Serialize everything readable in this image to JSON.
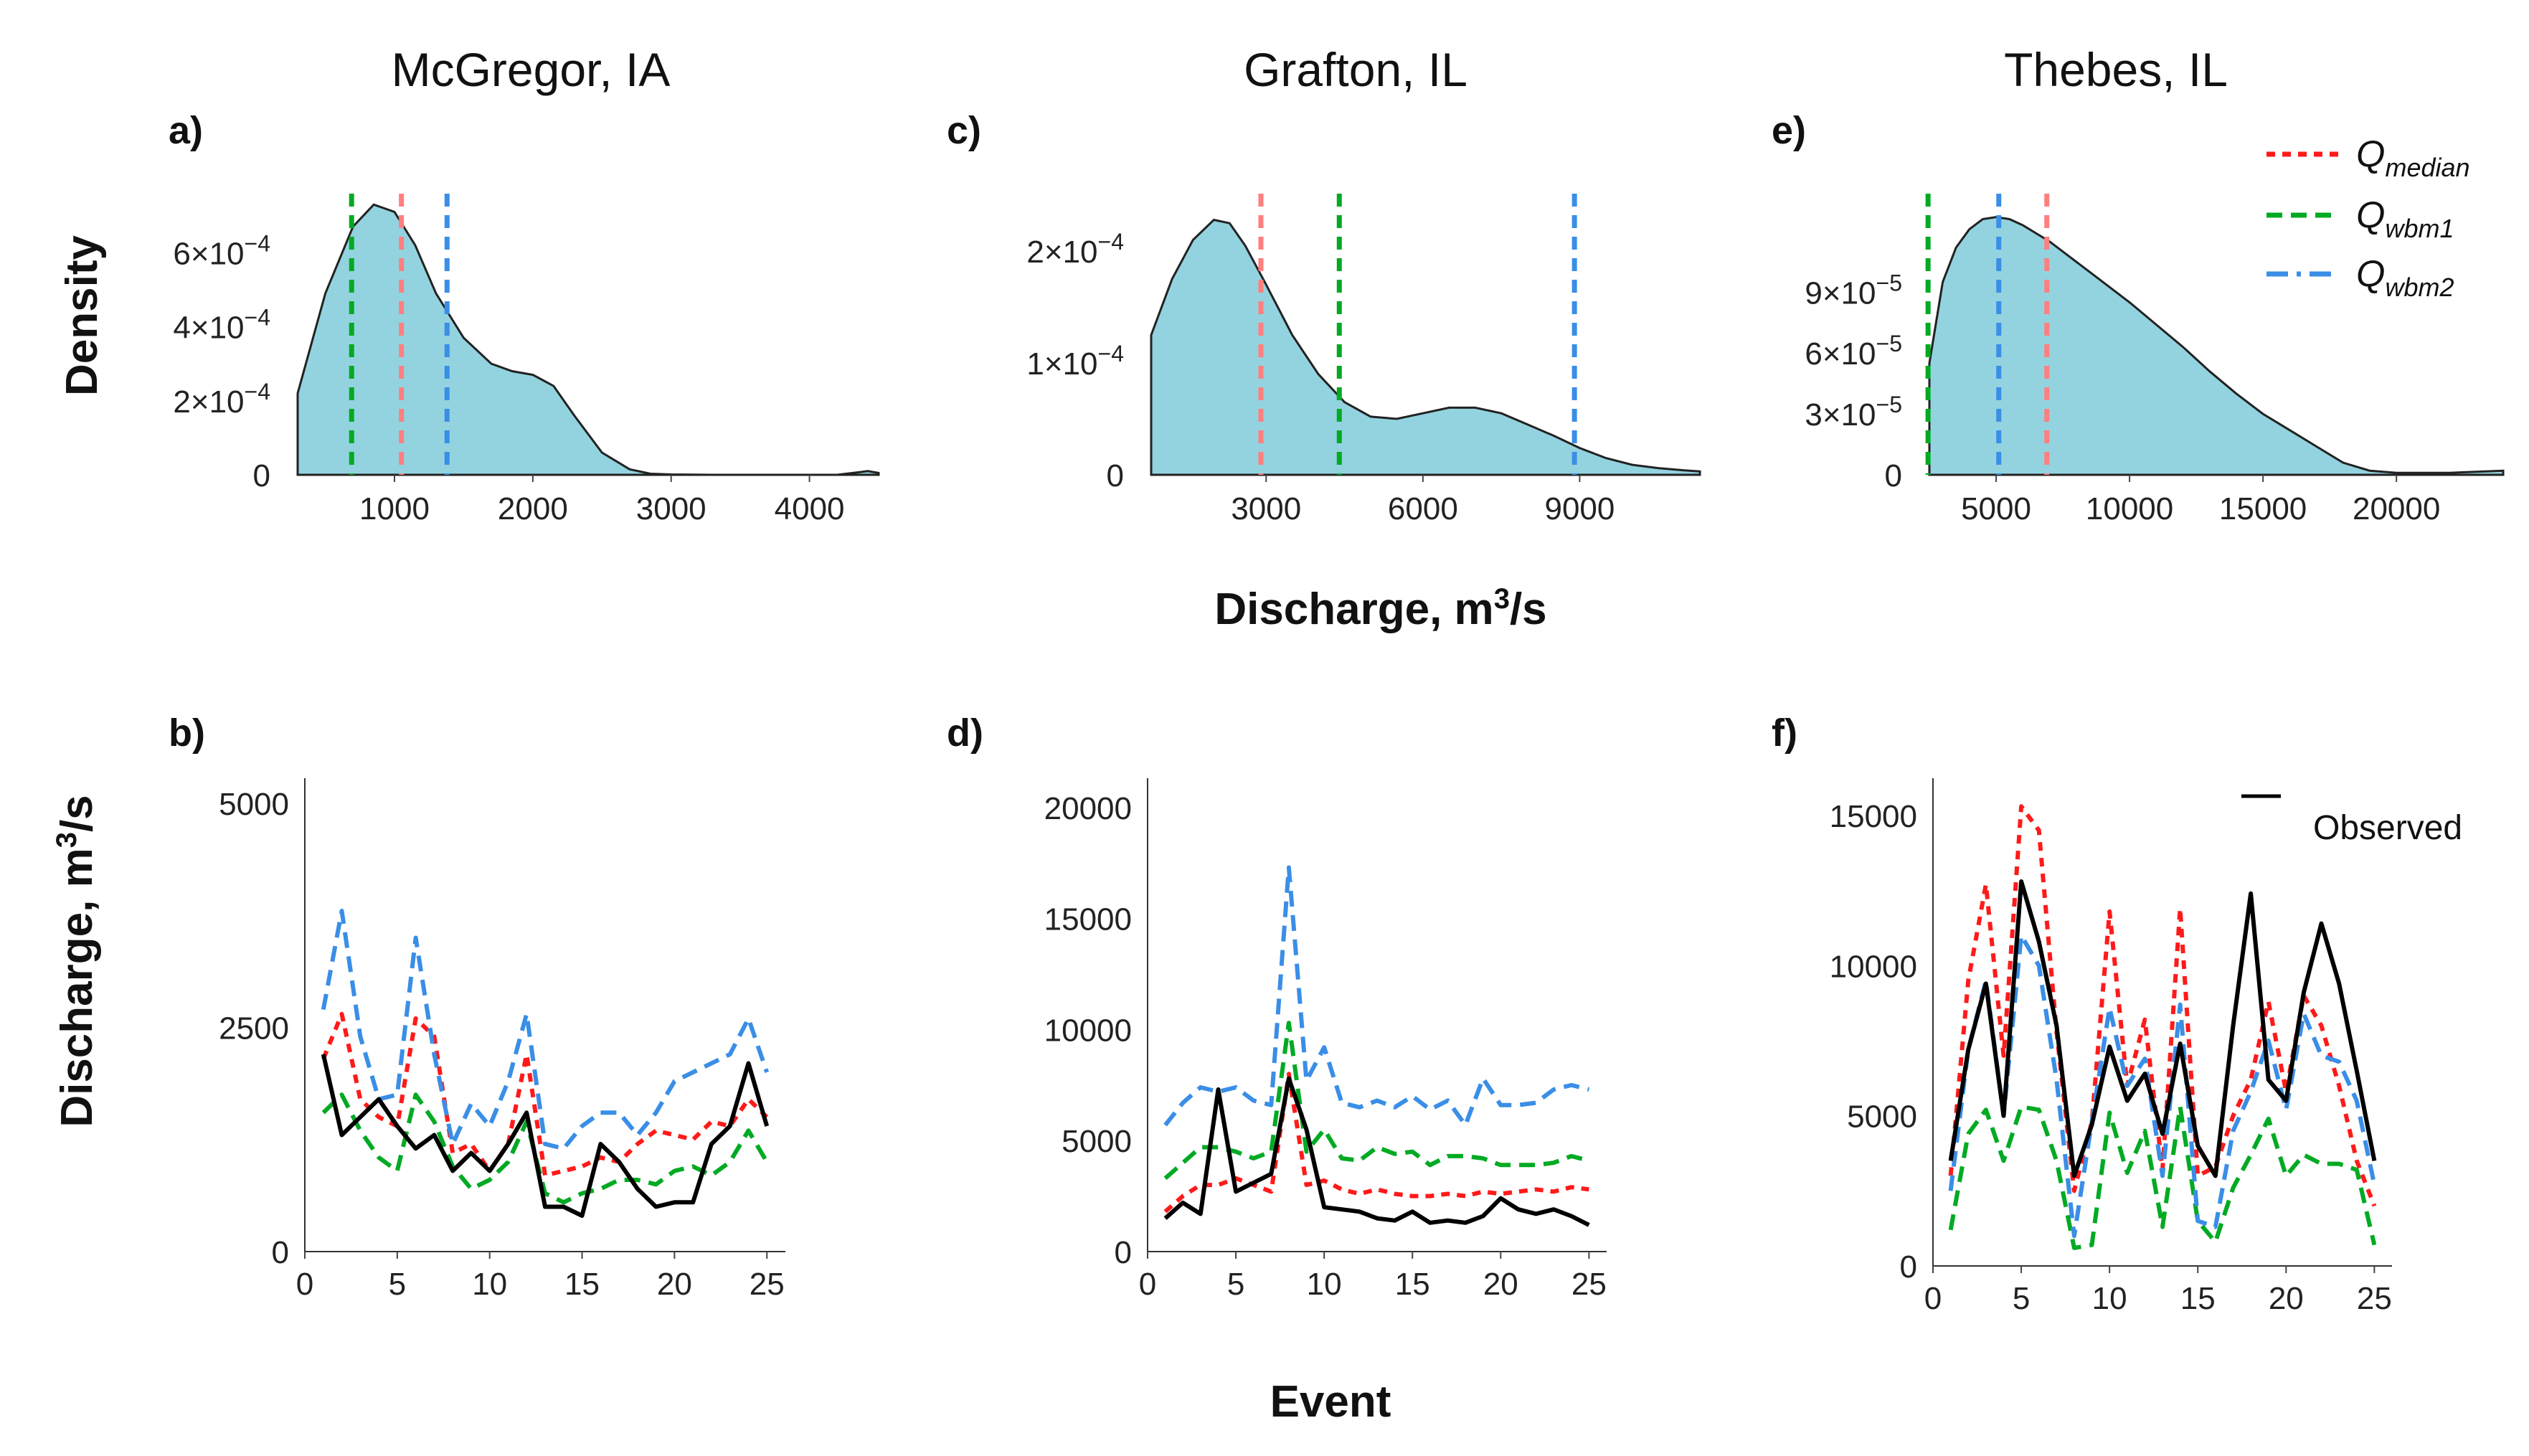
{
  "colors": {
    "median": "#ff1a1a",
    "median_light": "#ff7f7f",
    "wbm1": "#00aa22",
    "wbm2": "#3a8ee6",
    "density_fill": "#93d3df",
    "observed": "#000000"
  },
  "labels": {
    "density_ylabel": "Density",
    "discharge_ylabel": "Discharge, m",
    "discharge_ylabel_sup": "3",
    "discharge_ylabel_tail": "/s",
    "mid_xlabel": "Discharge, m",
    "mid_xlabel_sup": "3",
    "mid_xlabel_tail": "/s",
    "event_xlabel": "Event"
  },
  "legend_top": [
    {
      "label": "Q",
      "sub": "median"
    },
    {
      "label": "Q",
      "sub": "wbm1"
    },
    {
      "label": "Q",
      "sub": "wbm2"
    }
  ],
  "legend_bottom": {
    "observed": "Observed"
  },
  "panels": [
    {
      "site": "McGregor, IA",
      "density_label": "a)",
      "series_label": "b)"
    },
    {
      "site": "Grafton, IL",
      "density_label": "c)",
      "series_label": "d)"
    },
    {
      "site": "Thebes, IL",
      "density_label": "e)",
      "series_label": "f)"
    }
  ],
  "chart_data": [
    {
      "type": "area",
      "panel": "a)",
      "title": "McGregor, IA",
      "xlabel": "Discharge, m3/s",
      "ylabel": "Density",
      "xlim": [
        300,
        4500
      ],
      "ylim": [
        0,
        0.00074
      ],
      "x": [
        300,
        500,
        700,
        850,
        1000,
        1150,
        1300,
        1500,
        1700,
        1850,
        2000,
        2150,
        2300,
        2500,
        2700,
        2850,
        3000,
        3300,
        3600,
        3900,
        4200,
        4380,
        4420,
        4500
      ],
      "y": [
        0.00022,
        0.00049,
        0.00067,
        0.00073,
        0.00071,
        0.00062,
        0.00049,
        0.00037,
        0.0003,
        0.00028,
        0.00027,
        0.00024,
        0.00016,
        6e-05,
        1.5e-05,
        3e-06,
        1e-06,
        0,
        0,
        0,
        0,
        8e-06,
        1e-05,
        5e-06
      ],
      "xticks": [
        1000,
        2000,
        3000,
        4000
      ],
      "xticklabels": [
        "1000",
        "2000",
        "3000",
        "4000"
      ],
      "yticks": [
        0,
        0.0002,
        0.0004,
        0.0006
      ],
      "yticklabels": [
        {
          "m": "0",
          "e": ""
        },
        {
          "m": "2×10",
          "e": "−4"
        },
        {
          "m": "4×10",
          "e": "−4"
        },
        {
          "m": "6×10",
          "e": "−4"
        }
      ],
      "vlines": {
        "median": 1050,
        "wbm1": 690,
        "wbm2": 1380
      }
    },
    {
      "type": "area",
      "panel": "c)",
      "title": "Grafton, IL",
      "xlabel": "Discharge, m3/s",
      "ylabel": "Density",
      "xlim": [
        800,
        11300
      ],
      "ylim": [
        0,
        0.000245
      ],
      "x": [
        800,
        1200,
        1600,
        2000,
        2300,
        2600,
        3000,
        3500,
        4000,
        4500,
        5000,
        5500,
        6000,
        6500,
        7000,
        7500,
        8000,
        8500,
        9000,
        9500,
        10000,
        10500,
        11000,
        11300
      ],
      "y": [
        0.000125,
        0.000175,
        0.00021,
        0.000228,
        0.000225,
        0.000205,
        0.00017,
        0.000125,
        9e-05,
        6.5e-05,
        5.2e-05,
        5e-05,
        5.5e-05,
        6e-05,
        6e-05,
        5.5e-05,
        4.5e-05,
        3.5e-05,
        2.4e-05,
        1.5e-05,
        9e-06,
        6e-06,
        4e-06,
        3e-06
      ],
      "xticks": [
        3000,
        6000,
        9000
      ],
      "xticklabels": [
        "3000",
        "6000",
        "9000"
      ],
      "yticks": [
        0,
        0.0001,
        0.0002
      ],
      "yticklabels": [
        {
          "m": "0",
          "e": ""
        },
        {
          "m": "1×10",
          "e": "−4"
        },
        {
          "m": "2×10",
          "e": "−4"
        }
      ],
      "vlines": {
        "median": 2900,
        "wbm1": 4400,
        "wbm2": 8900
      }
    },
    {
      "type": "area",
      "panel": "e)",
      "title": "Thebes, IL",
      "xlabel": "Discharge, m3/s",
      "ylabel": "Density",
      "xlim": [
        2500,
        24000
      ],
      "ylim": [
        0,
        0.000135
      ],
      "x": [
        2500,
        3000,
        3500,
        4000,
        4500,
        5000,
        5500,
        6000,
        7000,
        8000,
        9000,
        10000,
        11000,
        12000,
        13000,
        14000,
        15000,
        16000,
        17000,
        18000,
        19000,
        20000,
        22000,
        24000
      ],
      "y": [
        5.5e-05,
        9.5e-05,
        0.000112,
        0.000121,
        0.000126,
        0.000127,
        0.000126,
        0.000123,
        0.000115,
        0.000105,
        9.5e-05,
        8.5e-05,
        7.4e-05,
        6.3e-05,
        5.1e-05,
        4e-05,
        3e-05,
        2.2e-05,
        1.4e-05,
        6e-06,
        2e-06,
        1e-06,
        1e-06,
        2e-06
      ],
      "xticks": [
        5000,
        10000,
        15000,
        20000
      ],
      "xticklabels": [
        "5000",
        "10000",
        "15000",
        "20000"
      ],
      "yticks": [
        0,
        3e-05,
        6e-05,
        9e-05
      ],
      "yticklabels": [
        {
          "m": "0",
          "e": ""
        },
        {
          "m": "3×10",
          "e": "−5"
        },
        {
          "m": "6×10",
          "e": "−5"
        },
        {
          "m": "9×10",
          "e": "−5"
        }
      ],
      "vlines": {
        "median": 6900,
        "wbm1": 2450,
        "wbm2": 5100
      }
    },
    {
      "type": "line",
      "panel": "b)",
      "title": "McGregor, IA",
      "xlabel": "Event",
      "ylabel": "Discharge, m3/s",
      "xlim": [
        0,
        26
      ],
      "ylim": [
        0,
        5200
      ],
      "x": [
        1,
        2,
        3,
        4,
        5,
        6,
        7,
        8,
        9,
        10,
        11,
        12,
        13,
        14,
        15,
        16,
        17,
        18,
        19,
        20,
        21,
        22,
        23,
        24,
        25
      ],
      "xticks": [
        0,
        5,
        10,
        15,
        20,
        25
      ],
      "yticks": [
        0,
        2500,
        5000
      ],
      "yticklabels": [
        "0",
        "2500",
        "5000"
      ],
      "series": [
        {
          "name": "Qmedian",
          "style": "median",
          "values": [
            2150,
            2650,
            1700,
            1500,
            1400,
            2600,
            2400,
            1100,
            1200,
            900,
            1200,
            2200,
            850,
            900,
            950,
            1050,
            1000,
            1200,
            1350,
            1300,
            1250,
            1450,
            1400,
            1700,
            1500
          ]
        },
        {
          "name": "Qwbm1",
          "style": "wbm1",
          "values": [
            1550,
            1750,
            1350,
            1050,
            900,
            1750,
            1450,
            950,
            700,
            800,
            1000,
            1450,
            650,
            550,
            650,
            700,
            800,
            800,
            750,
            900,
            950,
            850,
            1000,
            1350,
            1000
          ]
        },
        {
          "name": "Qwbm2",
          "style": "wbm2",
          "values": [
            2700,
            3800,
            2400,
            1700,
            1750,
            3500,
            2200,
            1200,
            1650,
            1400,
            1900,
            2650,
            1200,
            1150,
            1400,
            1550,
            1550,
            1300,
            1550,
            1900,
            2000,
            2100,
            2200,
            2600,
            2000
          ]
        },
        {
          "name": "Observed",
          "style": "observed",
          "values": [
            2200,
            1300,
            1500,
            1700,
            1400,
            1150,
            1300,
            900,
            1100,
            900,
            1200,
            1550,
            500,
            500,
            400,
            1200,
            1000,
            700,
            500,
            550,
            550,
            1200,
            1400,
            2100,
            1400
          ]
        }
      ]
    },
    {
      "type": "line",
      "panel": "d)",
      "title": "Grafton, IL",
      "xlabel": "Event",
      "ylabel": "Discharge, m3/s",
      "xlim": [
        0,
        26
      ],
      "ylim": [
        0,
        21000
      ],
      "x": [
        1,
        2,
        3,
        4,
        5,
        6,
        7,
        8,
        9,
        10,
        11,
        12,
        13,
        14,
        15,
        16,
        17,
        18,
        19,
        20,
        21,
        22,
        23,
        24,
        25
      ],
      "xticks": [
        0,
        5,
        10,
        15,
        20,
        25
      ],
      "yticks": [
        0,
        5000,
        10000,
        15000,
        20000
      ],
      "yticklabels": [
        "0",
        "5000",
        "10000",
        "15000",
        "20000"
      ],
      "series": [
        {
          "name": "Qmedian",
          "style": "median",
          "values": [
            1800,
            2500,
            3000,
            3000,
            3300,
            3000,
            2700,
            8000,
            3000,
            3200,
            2800,
            2600,
            2800,
            2600,
            2500,
            2500,
            2600,
            2500,
            2700,
            2600,
            2700,
            2800,
            2700,
            2900,
            2800
          ]
        },
        {
          "name": "Qwbm1",
          "style": "wbm1",
          "values": [
            3300,
            4000,
            4700,
            4700,
            4500,
            4200,
            4500,
            10300,
            4500,
            5500,
            4200,
            4100,
            4700,
            4400,
            4500,
            3900,
            4300,
            4300,
            4200,
            3900,
            3900,
            3900,
            4000,
            4300,
            4100
          ]
        },
        {
          "name": "Qwbm2",
          "style": "wbm2",
          "values": [
            5700,
            6700,
            7400,
            7200,
            7400,
            6800,
            6600,
            17300,
            7700,
            9200,
            6700,
            6500,
            6800,
            6500,
            7000,
            6400,
            6800,
            5700,
            7800,
            6600,
            6600,
            6700,
            7300,
            7500,
            7300
          ]
        },
        {
          "name": "Observed",
          "style": "observed",
          "values": [
            1500,
            2200,
            1700,
            7300,
            2700,
            3100,
            3500,
            7800,
            5500,
            2000,
            1900,
            1800,
            1500,
            1400,
            1800,
            1300,
            1400,
            1300,
            1600,
            2400,
            1900,
            1700,
            1900,
            1600,
            1200
          ]
        }
      ]
    },
    {
      "type": "line",
      "panel": "f)",
      "title": "Thebes, IL",
      "xlabel": "Event",
      "ylabel": "Discharge, m3/s",
      "xlim": [
        0,
        26
      ],
      "ylim": [
        0,
        16000
      ],
      "x": [
        1,
        2,
        3,
        4,
        5,
        6,
        7,
        8,
        9,
        10,
        11,
        12,
        13,
        14,
        15,
        16,
        17,
        18,
        19,
        20,
        21,
        22,
        23,
        24,
        25
      ],
      "xticks": [
        0,
        5,
        10,
        15,
        20,
        25
      ],
      "yticks": [
        0,
        5000,
        10000,
        15000
      ],
      "yticklabels": [
        "0",
        "5000",
        "10000",
        "15000"
      ],
      "series": [
        {
          "name": "Qmedian",
          "style": "median",
          "values": [
            3000,
            9500,
            12700,
            7000,
            15300,
            14500,
            7800,
            2500,
            4800,
            11800,
            6000,
            8200,
            3200,
            11900,
            3000,
            3300,
            5000,
            6200,
            8800,
            5800,
            9000,
            8000,
            6000,
            3500,
            2000
          ]
        },
        {
          "name": "Qwbm1",
          "style": "wbm1",
          "values": [
            1200,
            4400,
            5200,
            3500,
            5300,
            5200,
            3500,
            600,
            700,
            5100,
            3100,
            4500,
            1300,
            5300,
            1500,
            800,
            2600,
            3700,
            4900,
            3000,
            3700,
            3400,
            3400,
            3200,
            700
          ]
        },
        {
          "name": "Qwbm2",
          "style": "wbm2",
          "values": [
            2500,
            7200,
            9500,
            5000,
            11000,
            10000,
            6200,
            1000,
            4800,
            8600,
            6000,
            6900,
            3000,
            8700,
            1500,
            1300,
            4500,
            5800,
            7500,
            5200,
            8400,
            7000,
            6800,
            5500,
            2700
          ]
        },
        {
          "name": "Observed",
          "style": "observed",
          "values": [
            3500,
            7200,
            9400,
            5000,
            12800,
            10800,
            8000,
            3000,
            4700,
            7300,
            5500,
            6400,
            4400,
            7400,
            4000,
            3000,
            8000,
            12400,
            6200,
            5500,
            9100,
            11400,
            9400,
            6500,
            3500
          ]
        }
      ]
    }
  ]
}
